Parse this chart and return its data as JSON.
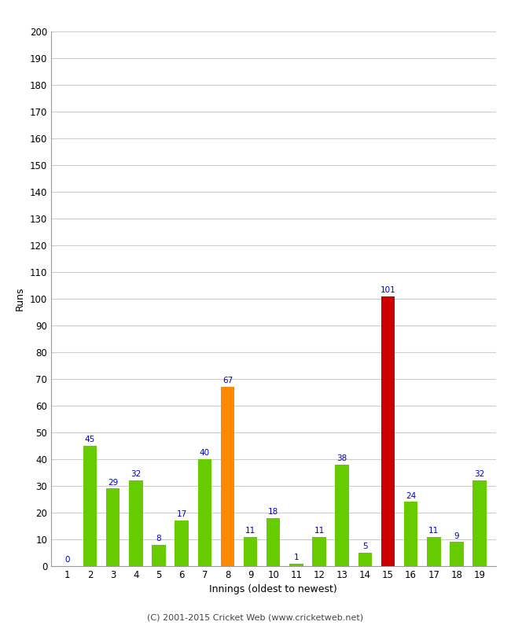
{
  "innings": [
    1,
    2,
    3,
    4,
    5,
    6,
    7,
    8,
    9,
    10,
    11,
    12,
    13,
    14,
    15,
    16,
    17,
    18,
    19
  ],
  "values": [
    0,
    45,
    29,
    32,
    8,
    17,
    40,
    67,
    11,
    18,
    1,
    11,
    38,
    5,
    101,
    24,
    11,
    9,
    32
  ],
  "colors": [
    "#66cc00",
    "#66cc00",
    "#66cc00",
    "#66cc00",
    "#66cc00",
    "#66cc00",
    "#66cc00",
    "#ff8800",
    "#66cc00",
    "#66cc00",
    "#66cc00",
    "#66cc00",
    "#66cc00",
    "#66cc00",
    "#cc0000",
    "#66cc00",
    "#66cc00",
    "#66cc00",
    "#66cc00"
  ],
  "ylabel": "Runs",
  "xlabel": "Innings (oldest to newest)",
  "ylim": [
    0,
    200
  ],
  "yticks": [
    0,
    10,
    20,
    30,
    40,
    50,
    60,
    70,
    80,
    90,
    100,
    110,
    120,
    130,
    140,
    150,
    160,
    170,
    180,
    190,
    200
  ],
  "label_color": "#0000cc",
  "background_color": "#ffffff",
  "grid_color": "#cccccc",
  "footer": "(C) 2001-2015 Cricket Web (www.cricketweb.net)",
  "bar_width": 0.6
}
